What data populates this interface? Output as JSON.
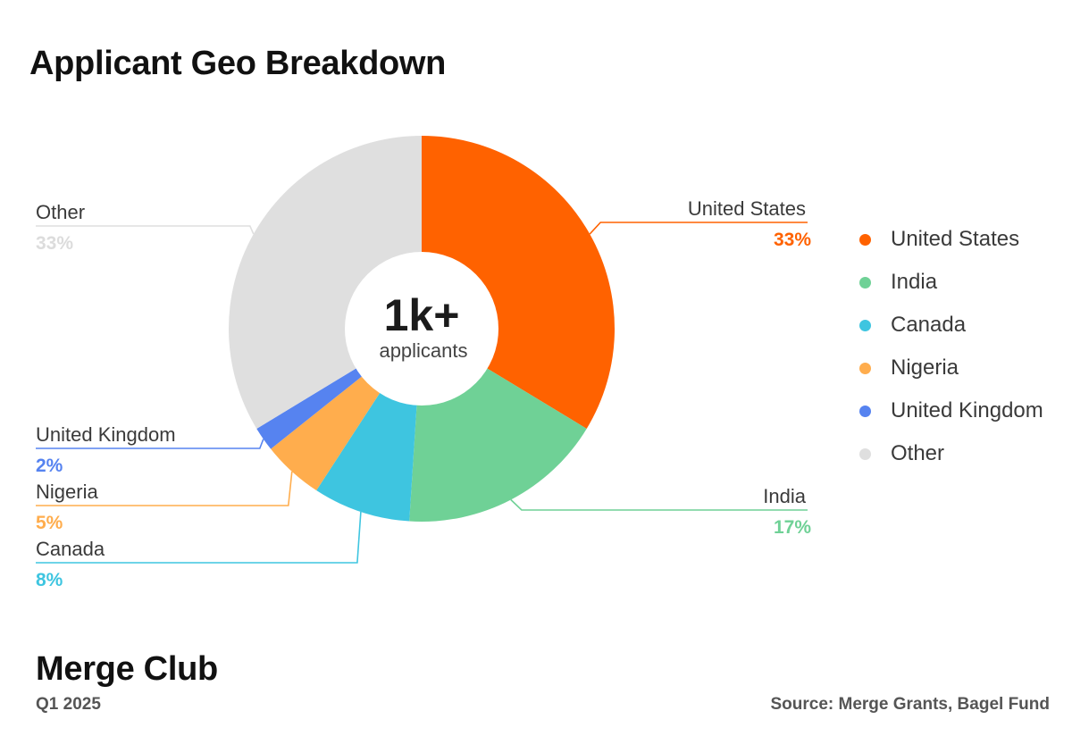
{
  "title": "Applicant Geo Breakdown",
  "center": {
    "value": "1k+",
    "label": "applicants"
  },
  "footer": {
    "brand": "Merge Club",
    "period": "Q1 2025",
    "source": "Source: Merge Grants, Bagel Fund"
  },
  "chart_data": {
    "type": "pie",
    "variant": "donut",
    "title": "Applicant Geo Breakdown",
    "legend_position": "right",
    "slices": [
      {
        "label": "United States",
        "value": 33,
        "display": "33%",
        "color": "#FF6200"
      },
      {
        "label": "India",
        "value": 17,
        "display": "17%",
        "color": "#6FD196"
      },
      {
        "label": "Canada",
        "value": 8,
        "display": "8%",
        "color": "#3EC5E0"
      },
      {
        "label": "Nigeria",
        "value": 5,
        "display": "5%",
        "color": "#FFAD4D"
      },
      {
        "label": "United Kingdom",
        "value": 2,
        "display": "2%",
        "color": "#5683F0"
      },
      {
        "label": "Other",
        "value": 33,
        "display": "33%",
        "color": "#DFDFDF"
      }
    ]
  }
}
